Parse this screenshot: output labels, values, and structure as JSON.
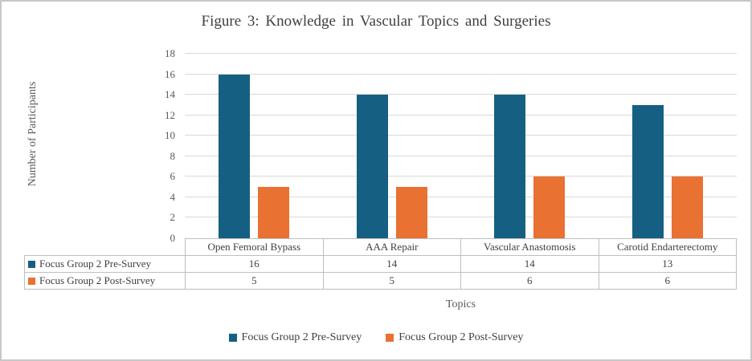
{
  "title": "Figure 3: Knowledge in Vascular Topics and Surgeries",
  "chart_data": {
    "type": "bar",
    "title": "Figure 3: Knowledge in Vascular Topics and Surgeries",
    "xlabel": "Topics",
    "ylabel": "Number of Participants",
    "ylim": [
      0,
      18
    ],
    "y_tick_step": 2,
    "grid": true,
    "legend_position": "bottom",
    "data_table_shown": true,
    "categories": [
      "Open Femoral Bypass",
      "AAA Repair",
      "Vascular Anastomosis",
      "Carotid Endarterectomy"
    ],
    "series": [
      {
        "name": "Focus Group 2 Pre-Survey",
        "color": "#156082",
        "values": [
          16,
          14,
          14,
          13
        ]
      },
      {
        "name": "Focus Group 2 Post-Survey",
        "color": "#E97132",
        "values": [
          5,
          5,
          6,
          6
        ]
      }
    ]
  },
  "colors": {
    "series_pre": "#156082",
    "series_post": "#E97132",
    "gridline": "#D9D9D9",
    "table_border": "#BFBFBF",
    "axis_text": "#595959",
    "title_text": "#404040",
    "frame_border": "#C8C8C8"
  }
}
